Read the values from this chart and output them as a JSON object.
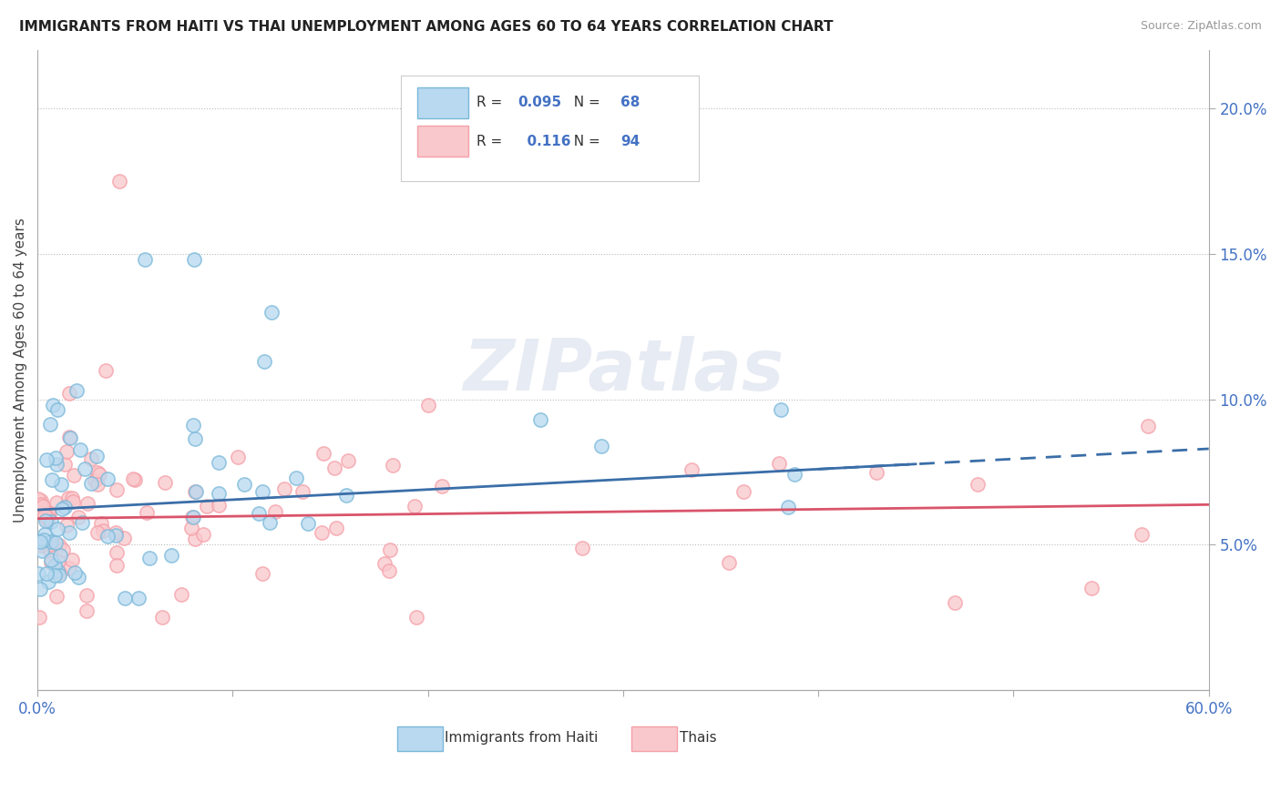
{
  "title": "IMMIGRANTS FROM HAITI VS THAI UNEMPLOYMENT AMONG AGES 60 TO 64 YEARS CORRELATION CHART",
  "source": "Source: ZipAtlas.com",
  "ylabel": "Unemployment Among Ages 60 to 64 years",
  "xlim": [
    0.0,
    0.6
  ],
  "ylim": [
    0.0,
    0.22
  ],
  "haiti_R": 0.095,
  "haiti_N": 68,
  "thai_R": 0.116,
  "thai_N": 94,
  "haiti_color": "#7ab8d9",
  "thai_color": "#f4a0a8",
  "haiti_color_fill": "#b8d9f0",
  "thai_color_fill": "#f9c8cc",
  "trend_color_haiti": "#3a6ea8",
  "trend_color_thai": "#d9546a",
  "legend_label_haiti": "Immigrants from Haiti",
  "legend_label_thai": "Thais",
  "ytick_vals": [
    0.05,
    0.1,
    0.15,
    0.2
  ],
  "ytick_labels": [
    "5.0%",
    "10.0%",
    "15.0%",
    "20.0%"
  ]
}
